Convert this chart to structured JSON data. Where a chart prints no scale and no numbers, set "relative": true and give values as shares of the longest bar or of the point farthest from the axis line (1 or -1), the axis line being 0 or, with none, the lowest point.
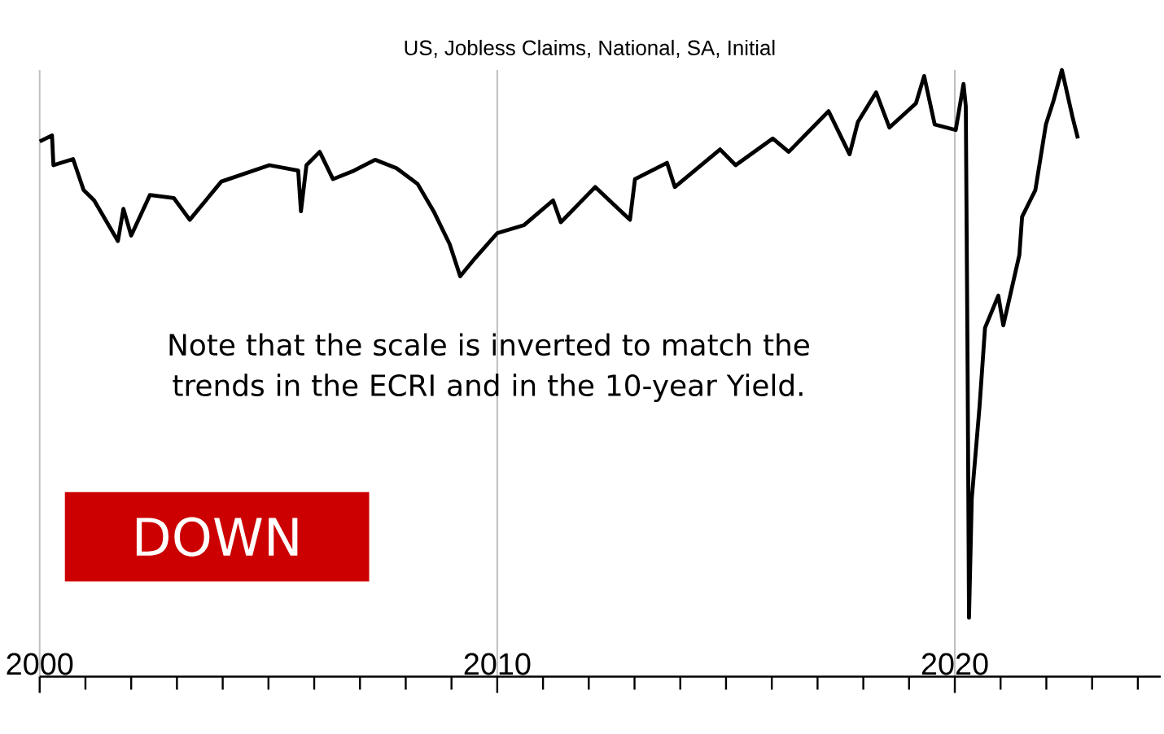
{
  "chart_data": {
    "type": "line",
    "title": "US, Jobless Claims, National, SA, Initial",
    "relative": true,
    "x": [
      2000,
      2000.27,
      2000.3,
      2000.73,
      2000.96,
      2001.19,
      2001.71,
      2001.83,
      2002.0,
      2002.41,
      2002.93,
      2003.28,
      2003.97,
      2005.02,
      2005.65,
      2005.71,
      2005.83,
      2006.12,
      2006.41,
      2006.87,
      2007.33,
      2007.8,
      2008.26,
      2008.61,
      2008.96,
      2009.19,
      2009.53,
      2010.0,
      2010.58,
      2011.22,
      2011.39,
      2012.14,
      2012.9,
      2013.01,
      2013.71,
      2013.88,
      2014.87,
      2015.21,
      2016.02,
      2016.37,
      2017.24,
      2017.7,
      2017.88,
      2018.28,
      2018.57,
      2019.15,
      2019.33,
      2019.56,
      2020.02,
      2020.19,
      2020.24,
      2020.28,
      2020.31,
      2020.37,
      2020.54,
      2020.66,
      2020.95,
      2021.06,
      2021.41,
      2021.47,
      2021.76,
      2021.99,
      2022.16,
      2022.34,
      2022.4,
      2022.57,
      2022.69
    ],
    "series": [
      {
        "color": "#000000",
        "values": [
          0.882,
          0.892,
          0.843,
          0.853,
          0.802,
          0.785,
          0.718,
          0.771,
          0.727,
          0.794,
          0.789,
          0.753,
          0.816,
          0.843,
          0.834,
          0.767,
          0.843,
          0.865,
          0.82,
          0.834,
          0.852,
          0.838,
          0.812,
          0.767,
          0.713,
          0.66,
          0.691,
          0.731,
          0.744,
          0.785,
          0.749,
          0.807,
          0.753,
          0.82,
          0.847,
          0.807,
          0.869,
          0.843,
          0.887,
          0.865,
          0.932,
          0.861,
          0.914,
          0.963,
          0.905,
          0.945,
          0.99,
          0.91,
          0.901,
          0.977,
          0.94,
          0.5,
          0.097,
          0.293,
          0.445,
          0.575,
          0.628,
          0.579,
          0.695,
          0.758,
          0.802,
          0.91,
          0.95,
          1,
          0.98,
          0.923,
          0.887
        ]
      }
    ],
    "xlim": [
      2000,
      2024.5
    ],
    "xticks": [
      2000,
      {
        "value": 2001,
        "label": null
      },
      {
        "value": 2002,
        "label": null
      },
      {
        "value": 2003,
        "label": null
      },
      {
        "value": 2004,
        "label": null
      },
      {
        "value": 2005,
        "label": null
      },
      {
        "value": 2006,
        "label": null
      },
      {
        "value": 2007,
        "label": null
      },
      {
        "value": 2008,
        "label": null
      },
      {
        "value": 2009,
        "label": null
      },
      2010,
      {
        "value": 2011,
        "label": null
      },
      {
        "value": 2012,
        "label": null
      },
      {
        "value": 2013,
        "label": null
      },
      {
        "value": 2014,
        "label": null
      },
      {
        "value": 2015,
        "label": null
      },
      {
        "value": 2016,
        "label": null
      },
      {
        "value": 2017,
        "label": null
      },
      {
        "value": 2018,
        "label": null
      },
      {
        "value": 2019,
        "label": null
      },
      2020,
      {
        "value": 2021,
        "label": null
      },
      {
        "value": 2022,
        "label": null
      },
      {
        "value": 2023,
        "label": null
      },
      {
        "value": 2024,
        "label": null
      }
    ],
    "grid": "x",
    "annotations": [
      "Note that the scale is inverted to match the trends in the ECRI and in the 10-year Yield.",
      "DOWN"
    ]
  }
}
